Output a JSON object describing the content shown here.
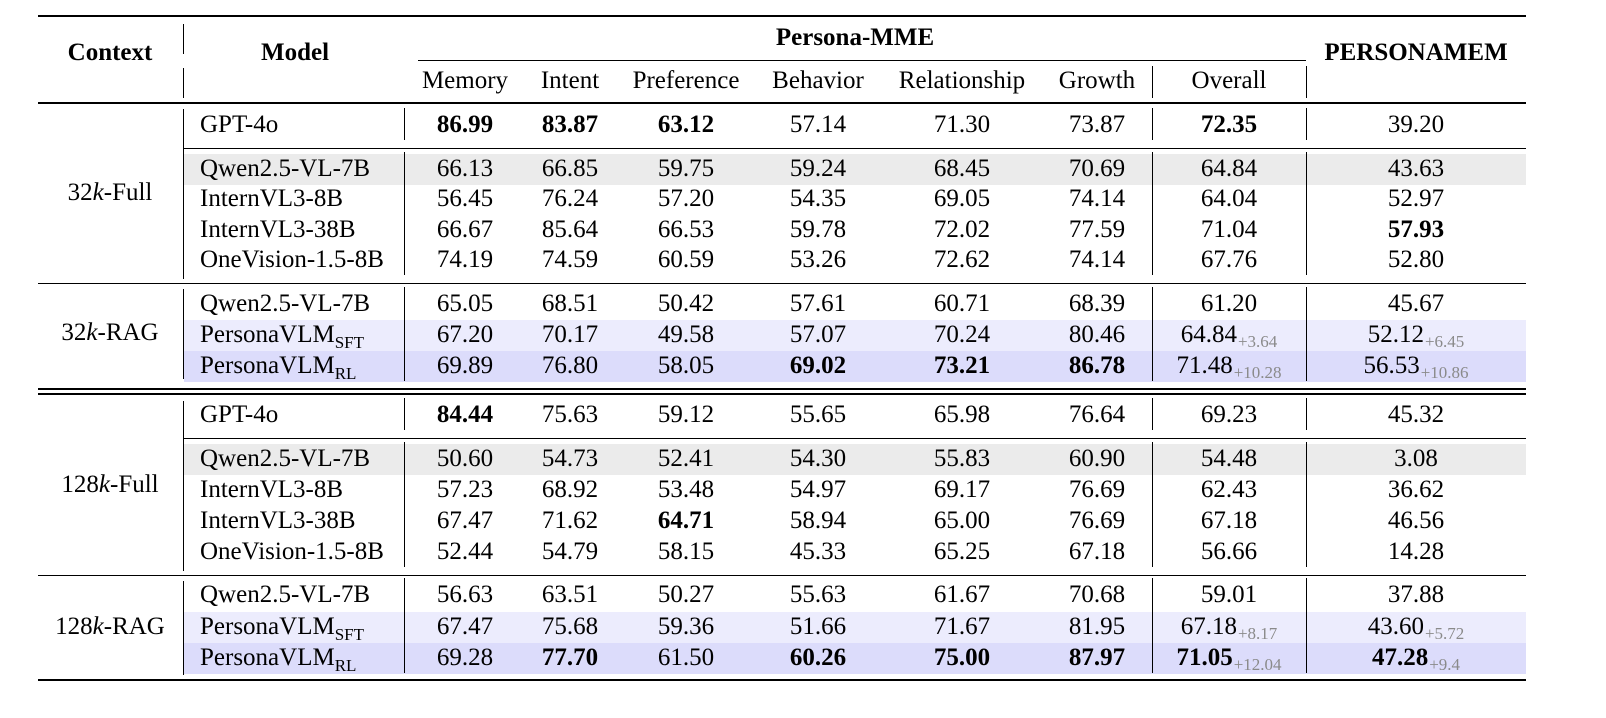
{
  "header": {
    "context": "Context",
    "model": "Model",
    "group": "Persona-MME",
    "personamem": "PERSONAMEM",
    "columns": [
      "Memory",
      "Intent",
      "Preference",
      "Behavior",
      "Relationship",
      "Growth",
      "Overall"
    ]
  },
  "colors": {
    "baseline_band": "#ebebeb",
    "sft_band": "#ececfd",
    "rl_band": "#dcdcfb",
    "delta_text": "#8a8a8a"
  },
  "sections": [
    {
      "context": "32k-Full",
      "groups": [
        [
          {
            "model": "GPT-4o",
            "values": [
              "86.99",
              "83.87",
              "63.12",
              "57.14",
              "71.30",
              "73.87",
              "72.35",
              "39.20"
            ],
            "bold": [
              0,
              1,
              2,
              6
            ]
          }
        ],
        [
          {
            "model": "Qwen2.5-VL-7B",
            "values": [
              "66.13",
              "66.85",
              "59.75",
              "59.24",
              "68.45",
              "70.69",
              "64.84",
              "43.63"
            ],
            "bold": [],
            "band": "baseline"
          },
          {
            "model": "InternVL3-8B",
            "values": [
              "56.45",
              "76.24",
              "57.20",
              "54.35",
              "69.05",
              "74.14",
              "64.04",
              "52.97"
            ],
            "bold": []
          },
          {
            "model": "InternVL3-38B",
            "values": [
              "66.67",
              "85.64",
              "66.53",
              "59.78",
              "72.02",
              "77.59",
              "71.04",
              "57.93"
            ],
            "bold": [
              7
            ]
          },
          {
            "model": "OneVision-1.5-8B",
            "values": [
              "74.19",
              "74.59",
              "60.59",
              "53.26",
              "72.62",
              "74.14",
              "67.76",
              "52.80"
            ],
            "bold": []
          }
        ]
      ]
    },
    {
      "context": "32k-RAG",
      "groups": [
        [
          {
            "model": "Qwen2.5-VL-7B",
            "values": [
              "65.05",
              "68.51",
              "50.42",
              "57.61",
              "60.71",
              "68.39",
              "61.20",
              "45.67"
            ],
            "bold": []
          },
          {
            "model": "PersonaVLM",
            "model_sub": "SFT",
            "values": [
              "67.20",
              "70.17",
              "49.58",
              "57.07",
              "70.24",
              "80.46",
              "64.84",
              "52.12"
            ],
            "deltas": [
              "+3.64",
              "+6.45"
            ],
            "bold": [],
            "band": "sft"
          },
          {
            "model": "PersonaVLM",
            "model_sub": "RL",
            "values": [
              "69.89",
              "76.80",
              "58.05",
              "69.02",
              "73.21",
              "86.78",
              "71.48",
              "56.53"
            ],
            "deltas": [
              "+10.28",
              "+10.86"
            ],
            "bold": [
              3,
              4,
              5
            ],
            "band": "rl"
          }
        ]
      ]
    },
    {
      "context": "128k-Full",
      "groups": [
        [
          {
            "model": "GPT-4o",
            "values": [
              "84.44",
              "75.63",
              "59.12",
              "55.65",
              "65.98",
              "76.64",
              "69.23",
              "45.32"
            ],
            "bold": [
              0
            ]
          }
        ],
        [
          {
            "model": "Qwen2.5-VL-7B",
            "values": [
              "50.60",
              "54.73",
              "52.41",
              "54.30",
              "55.83",
              "60.90",
              "54.48",
              "3.08"
            ],
            "bold": [],
            "band": "baseline"
          },
          {
            "model": "InternVL3-8B",
            "values": [
              "57.23",
              "68.92",
              "53.48",
              "54.97",
              "69.17",
              "76.69",
              "62.43",
              "36.62"
            ],
            "bold": []
          },
          {
            "model": "InternVL3-38B",
            "values": [
              "67.47",
              "71.62",
              "64.71",
              "58.94",
              "65.00",
              "76.69",
              "67.18",
              "46.56"
            ],
            "bold": [
              2
            ]
          },
          {
            "model": "OneVision-1.5-8B",
            "values": [
              "52.44",
              "54.79",
              "58.15",
              "45.33",
              "65.25",
              "67.18",
              "56.66",
              "14.28"
            ],
            "bold": []
          }
        ]
      ]
    },
    {
      "context": "128k-RAG",
      "groups": [
        [
          {
            "model": "Qwen2.5-VL-7B",
            "values": [
              "56.63",
              "63.51",
              "50.27",
              "55.63",
              "61.67",
              "70.68",
              "59.01",
              "37.88"
            ],
            "bold": []
          },
          {
            "model": "PersonaVLM",
            "model_sub": "SFT",
            "values": [
              "67.47",
              "75.68",
              "59.36",
              "51.66",
              "71.67",
              "81.95",
              "67.18",
              "43.60"
            ],
            "deltas": [
              "+8.17",
              "+5.72"
            ],
            "bold": [],
            "band": "sft"
          },
          {
            "model": "PersonaVLM",
            "model_sub": "RL",
            "values": [
              "69.28",
              "77.70",
              "61.50",
              "60.26",
              "75.00",
              "87.97",
              "71.05",
              "47.28"
            ],
            "deltas": [
              "+12.04",
              "+9.4"
            ],
            "bold": [
              1,
              3,
              4,
              5,
              6,
              7
            ],
            "band": "rl"
          }
        ]
      ]
    }
  ]
}
